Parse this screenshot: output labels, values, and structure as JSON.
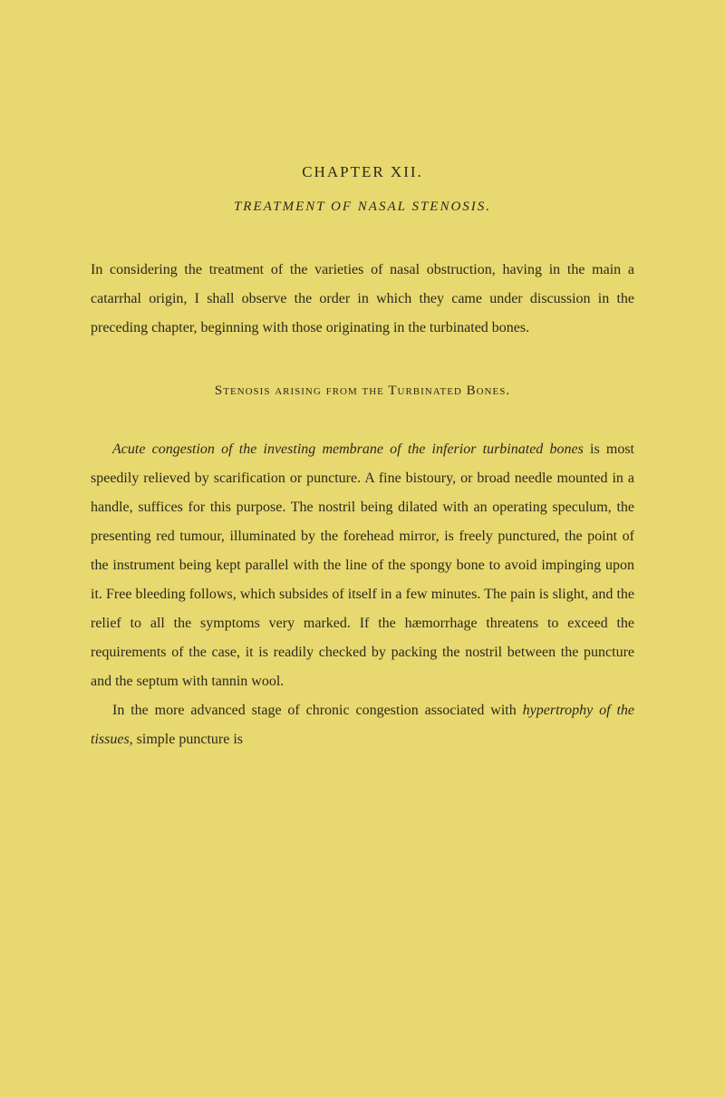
{
  "chapter": {
    "title": "CHAPTER XII.",
    "subtitle": "TREATMENT OF NASAL STENOSIS."
  },
  "intro_paragraph": "In considering the treatment of the varieties of nasal obstruction, having in the main a catarrhal origin, I shall observe the order in which they came under discussion in the preceding chapter, beginning with those originating in the turbinated bones.",
  "section_heading": "Stenosis arising from the Turbinated Bones.",
  "body": {
    "p1_italic1": "Acute congestion of the investing membrane of the inferior turbinated bones",
    "p1_rest": " is most speedily relieved by scarification or puncture. A fine bistoury, or broad needle mounted in a handle, suffices for this purpose. The nostril being dilated with an operating speculum, the presenting red tumour, illuminated by the forehead mirror, is freely punctured, the point of the instrument being kept parallel with the line of the spongy bone to avoid impinging upon it. Free bleeding follows, which subsides of itself in a few minutes. The pain is slight, and the relief to all the symptoms very marked. If the hæmorrhage threatens to exceed the requirements of the case, it is readily checked by packing the nostril between the puncture and the septum with tannin wool.",
    "p2_part1": "In the more advanced stage of chronic congestion associated with ",
    "p2_italic": "hypertrophy of the tissues",
    "p2_part2": ", simple puncture is"
  },
  "colors": {
    "background": "#e8d870",
    "text": "#2a2a1a"
  },
  "typography": {
    "body_fontsize": 16,
    "line_height": 2.0,
    "title_fontsize": 17,
    "subtitle_fontsize": 15
  }
}
